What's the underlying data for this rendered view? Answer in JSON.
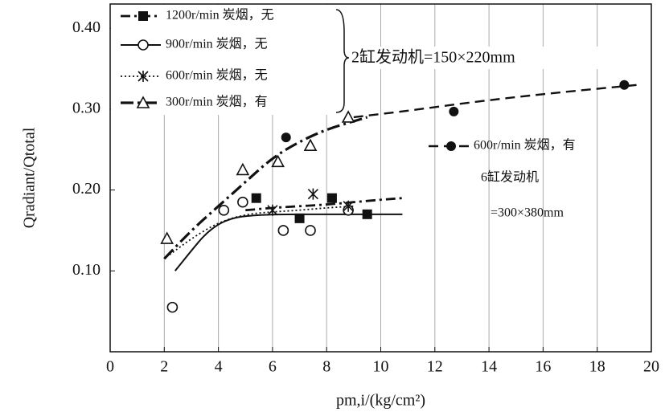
{
  "chart_data": {
    "type": "scatter",
    "x_label": "pm,i/(kg/cm²)",
    "y_label": "Qradiant/Qtotal",
    "xlim": [
      0,
      20
    ],
    "xticks": [
      0,
      2,
      4,
      6,
      8,
      10,
      12,
      14,
      16,
      18,
      20
    ],
    "ylim": [
      0,
      0.43
    ],
    "yticks": [
      {
        "value": 0.1,
        "label": "0.10"
      },
      {
        "value": 0.2,
        "label": "0.20"
      },
      {
        "value": 0.3,
        "label": "0.30"
      },
      {
        "value": 0.4,
        "label": "0.40"
      }
    ],
    "grid": "x",
    "series": [
      {
        "name": "1200r/min 炭烟，无",
        "color": "#111111",
        "marker": "filled-square",
        "line": "dashdot",
        "x": [
          5.4,
          7.0,
          8.2,
          9.5
        ],
        "y": [
          0.19,
          0.165,
          0.19,
          0.17
        ],
        "curve_x": [
          5.0,
          6.0,
          7.0,
          8.0,
          9.0,
          10.0,
          10.8
        ],
        "curve_y": [
          0.175,
          0.178,
          0.18,
          0.182,
          0.185,
          0.188,
          0.19
        ]
      },
      {
        "name": "900r/min 炭烟，无",
        "color": "#111111",
        "marker": "open-circle",
        "line": "solid",
        "x": [
          2.3,
          4.2,
          4.9,
          6.4,
          7.4,
          8.8
        ],
        "y": [
          0.055,
          0.175,
          0.185,
          0.15,
          0.15,
          0.175
        ],
        "curve_x": [
          2.4,
          3.0,
          3.5,
          4.0,
          4.5,
          5.0,
          6.0,
          8.0,
          10.8
        ],
        "curve_y": [
          0.1,
          0.125,
          0.145,
          0.158,
          0.165,
          0.168,
          0.17,
          0.17,
          0.17
        ]
      },
      {
        "name": "600r/min 炭烟，无",
        "color": "#111111",
        "marker": "asterisk",
        "line": "dotted",
        "x": [
          6.0,
          7.5,
          8.8
        ],
        "y": [
          0.175,
          0.195,
          0.18
        ],
        "curve_x": [
          2.2,
          3.0,
          4.0,
          5.0,
          6.0,
          7.0,
          8.0,
          9.0
        ],
        "curve_y": [
          0.12,
          0.14,
          0.16,
          0.17,
          0.173,
          0.175,
          0.178,
          0.18
        ]
      },
      {
        "name": "300r/min 炭烟，有",
        "color": "#111111",
        "marker": "triangle",
        "line": "dashdot-heavy",
        "x": [
          2.1,
          4.9,
          6.2,
          7.4,
          8.8
        ],
        "y": [
          0.14,
          0.225,
          0.235,
          0.255,
          0.29
        ],
        "curve_x": [
          2.0,
          3.0,
          4.0,
          5.0,
          6.0,
          7.0,
          8.0,
          9.0,
          9.5
        ],
        "curve_y": [
          0.115,
          0.15,
          0.18,
          0.21,
          0.24,
          0.26,
          0.275,
          0.285,
          0.29
        ]
      },
      {
        "name": "600r/min 炭烟，有",
        "color": "#111111",
        "marker": "filled-circle",
        "line": "dashed",
        "x": [
          6.5,
          12.7,
          19.0
        ],
        "y": [
          0.265,
          0.297,
          0.33
        ],
        "curve_x": [
          9.0,
          11.0,
          13.0,
          15.0,
          17.0,
          19.5
        ],
        "curve_y": [
          0.29,
          0.298,
          0.307,
          0.315,
          0.322,
          0.33
        ]
      }
    ],
    "annotations": [
      "2缸发动机=150×220mm",
      "6缸发动机",
      "=300×380mm"
    ]
  }
}
